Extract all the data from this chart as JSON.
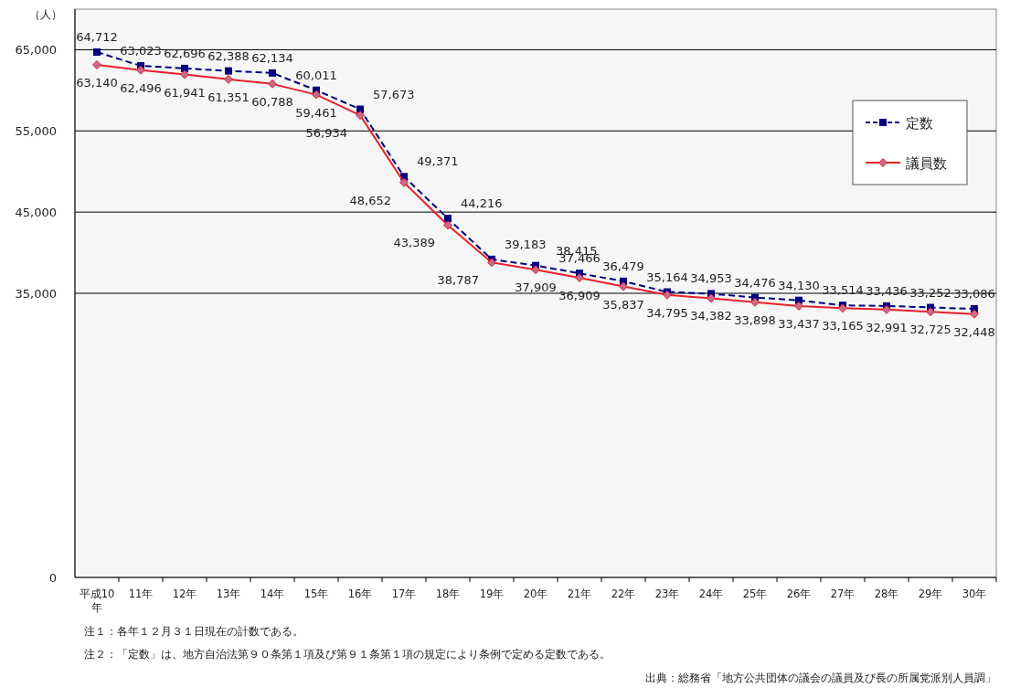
{
  "chart_data": {
    "type": "line",
    "ylabel": "（人）",
    "categories": [
      "平成10年",
      "11年",
      "12年",
      "13年",
      "14年",
      "15年",
      "16年",
      "17年",
      "18年",
      "19年",
      "20年",
      "21年",
      "22年",
      "23年",
      "24年",
      "25年",
      "26年",
      "27年",
      "28年",
      "29年",
      "30年"
    ],
    "series": [
      {
        "name": "定数",
        "color": "#000080",
        "marker": "square",
        "line_style": "dashed",
        "values": [
          64712,
          63023,
          62696,
          62388,
          62134,
          60011,
          57673,
          49371,
          44216,
          39183,
          38415,
          37466,
          36479,
          35164,
          34953,
          34476,
          34130,
          33514,
          33436,
          33252,
          33086
        ],
        "value_labels": [
          "64,712",
          "63,023",
          "62,696",
          "62,388",
          "62,134",
          "60,011",
          "57,673",
          "49,371",
          "44,216",
          "39,183",
          "38,415",
          "37,466",
          "36,479",
          "35,164",
          "34,953",
          "34,476",
          "34,130",
          "33,514",
          "33,436",
          "33,252",
          "33,086"
        ]
      },
      {
        "name": "議員数",
        "color": "#e8202a",
        "marker": "diamond",
        "line_style": "solid",
        "values": [
          63140,
          62496,
          61941,
          61351,
          60788,
          59461,
          56934,
          48652,
          43389,
          38787,
          37909,
          36909,
          35837,
          34795,
          34382,
          33898,
          33437,
          33165,
          32991,
          32725,
          32448
        ],
        "value_labels": [
          "63,140",
          "62,496",
          "61,941",
          "61,351",
          "60,788",
          "59,461",
          "56,934",
          "48,652",
          "43,389",
          "38,787",
          "37,909",
          "36,909",
          "35,837",
          "34,795",
          "34,382",
          "33,898",
          "33,437",
          "33,165",
          "32,991",
          "32,725",
          "32,448"
        ]
      }
    ],
    "ylim": [
      0,
      70000
    ],
    "yticks": [
      0,
      {
        "value": 35000,
        "label": "35,000"
      },
      {
        "value": 45000,
        "label": "45,000"
      },
      {
        "value": 55000,
        "label": "55,000"
      },
      {
        "value": 65000,
        "label": "65,000"
      }
    ],
    "grid": "y",
    "legend": "top right",
    "annotations": [
      "注１：各年１２月３１日現在の計数である。",
      "注２：「定数」は、地方自治法第９０条第１項及び第９１条第１項の規定により条例で定める定数である。",
      "出典：総務省「地方公共団体の議会の議員及び長の所属党派別人員調」"
    ]
  }
}
